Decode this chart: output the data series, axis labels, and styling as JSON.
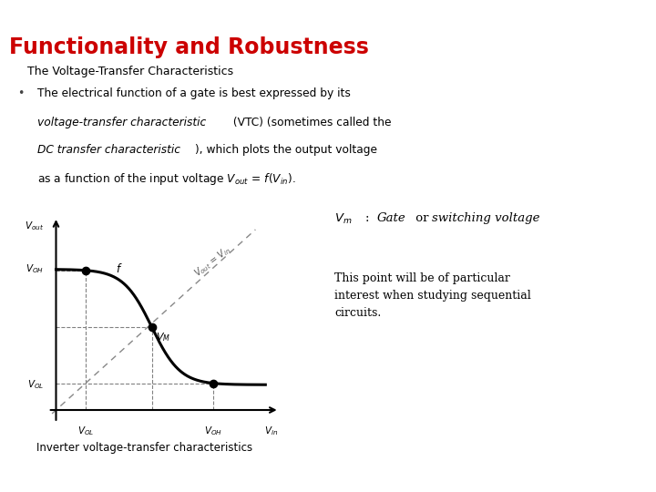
{
  "title": "Functionality and Robustness",
  "title_color": "#cc0000",
  "subtitle": "The Voltage-Transfer Characteristics",
  "caption": "Inverter voltage-transfer characteristics",
  "annotation_body": "This point will be of particular\ninterest when studying sequential\ncircuits.",
  "bg_color": "#ffffff",
  "header_top_color": "#3c4a5a",
  "header_bottom_color": "#4a8a8a",
  "curve_color": "#000000",
  "voh": 0.78,
  "vol": 0.14,
  "vm": 0.48,
  "steepness": 14
}
